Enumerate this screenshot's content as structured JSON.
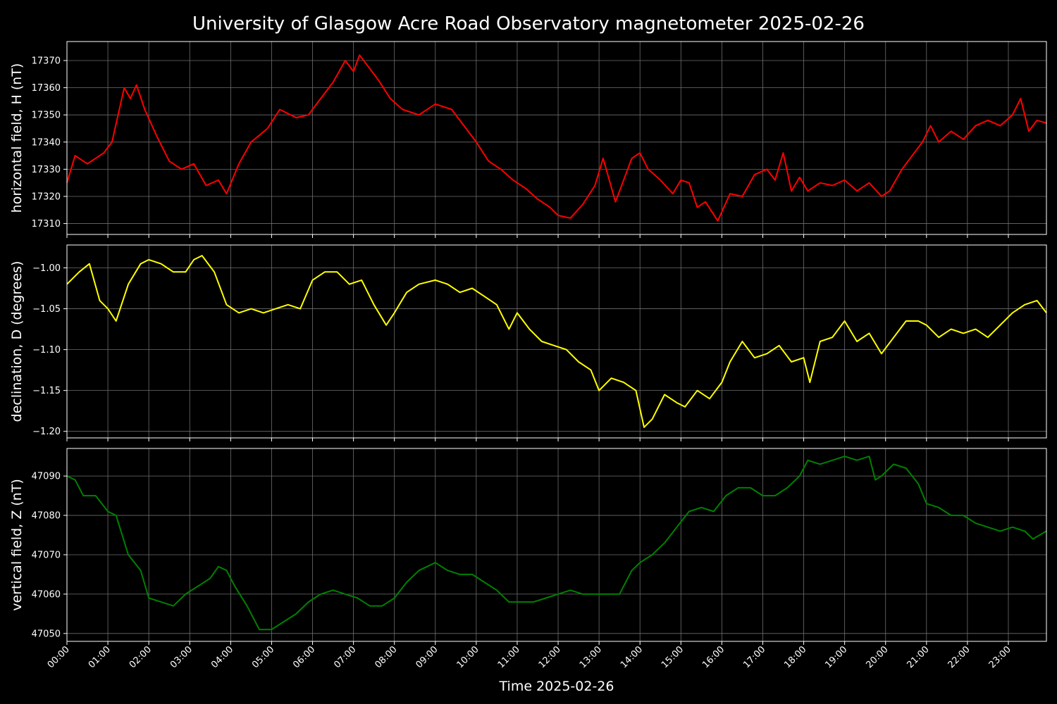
{
  "chart_data": {
    "type": "line",
    "title": "University of Glasgow Acre Road Observatory magnetometer 2025-02-26",
    "xlabel": "Time 2025-02-26",
    "x_range_hours": [
      0,
      23.93
    ],
    "x_ticks": [
      "00:00",
      "01:00",
      "02:00",
      "03:00",
      "04:00",
      "05:00",
      "06:00",
      "07:00",
      "08:00",
      "09:00",
      "10:00",
      "11:00",
      "12:00",
      "13:00",
      "14:00",
      "15:00",
      "16:00",
      "17:00",
      "18:00",
      "19:00",
      "20:00",
      "21:00",
      "22:00",
      "23:00"
    ],
    "grid": true,
    "panels": [
      {
        "name": "H",
        "ylabel": "horizontal field, H (nT)",
        "color": "#ff0000",
        "ylim": [
          17306,
          17377
        ],
        "yticks": [
          17310,
          17320,
          17330,
          17340,
          17350,
          17360,
          17370
        ],
        "ytick_labels": [
          "17310",
          "17320",
          "17330",
          "17340",
          "17350",
          "17360",
          "17370"
        ],
        "x_hours": [
          0,
          0.2,
          0.5,
          0.9,
          1.1,
          1.4,
          1.55,
          1.7,
          1.9,
          2.2,
          2.5,
          2.8,
          3.1,
          3.4,
          3.7,
          3.9,
          4.2,
          4.5,
          4.9,
          5.2,
          5.6,
          5.9,
          6.2,
          6.5,
          6.8,
          7.0,
          7.15,
          7.35,
          7.6,
          7.9,
          8.2,
          8.6,
          9.0,
          9.4,
          9.7,
          10.0,
          10.3,
          10.6,
          10.9,
          11.2,
          11.5,
          11.8,
          12.0,
          12.3,
          12.6,
          12.9,
          13.1,
          13.4,
          13.6,
          13.8,
          14.0,
          14.2,
          14.5,
          14.8,
          15.0,
          15.2,
          15.4,
          15.6,
          15.9,
          16.2,
          16.5,
          16.8,
          17.1,
          17.3,
          17.5,
          17.7,
          17.9,
          18.1,
          18.4,
          18.7,
          19.0,
          19.3,
          19.6,
          19.9,
          20.1,
          20.4,
          20.7,
          20.9,
          21.1,
          21.3,
          21.6,
          21.9,
          22.2,
          22.5,
          22.8,
          23.1,
          23.3,
          23.5,
          23.7,
          23.93
        ],
        "values": [
          17325,
          17335,
          17332,
          17336,
          17340,
          17360,
          17356,
          17361,
          17352,
          17342,
          17333,
          17330,
          17332,
          17324,
          17326,
          17321,
          17332,
          17340,
          17345,
          17352,
          17349,
          17350,
          17356,
          17362,
          17370,
          17366,
          17372,
          17368,
          17363,
          17356,
          17352,
          17350,
          17354,
          17352,
          17346,
          17340,
          17333,
          17330,
          17326,
          17323,
          17319,
          17316,
          17313,
          17312,
          17317,
          17324,
          17334,
          17318,
          17326,
          17334,
          17336,
          17330,
          17326,
          17321,
          17326,
          17325,
          17316,
          17318,
          17311,
          17321,
          17320,
          17328,
          17330,
          17326,
          17336,
          17322,
          17327,
          17322,
          17325,
          17324,
          17326,
          17322,
          17325,
          17320,
          17322,
          17330,
          17336,
          17340,
          17346,
          17340,
          17344,
          17341,
          17346,
          17348,
          17346,
          17350,
          17356,
          17344,
          17348,
          17347
        ]
      },
      {
        "name": "D",
        "ylabel": "declination, D (degrees)",
        "color": "#ffff00",
        "ylim": [
          -1.208,
          -0.972
        ],
        "yticks": [
          -1.2,
          -1.15,
          -1.1,
          -1.05,
          -1.0
        ],
        "ytick_labels": [
          "−1.20",
          "−1.15",
          "−1.10",
          "−1.05",
          "−1.00"
        ],
        "x_hours": [
          0,
          0.3,
          0.55,
          0.8,
          1.0,
          1.2,
          1.5,
          1.8,
          2.0,
          2.3,
          2.6,
          2.9,
          3.1,
          3.3,
          3.6,
          3.9,
          4.2,
          4.5,
          4.8,
          5.1,
          5.4,
          5.7,
          6.0,
          6.3,
          6.6,
          6.9,
          7.2,
          7.5,
          7.8,
          8.0,
          8.3,
          8.6,
          9.0,
          9.3,
          9.6,
          9.9,
          10.2,
          10.5,
          10.8,
          11.0,
          11.3,
          11.6,
          11.9,
          12.2,
          12.5,
          12.8,
          13.0,
          13.3,
          13.6,
          13.9,
          14.1,
          14.3,
          14.6,
          14.9,
          15.1,
          15.4,
          15.7,
          16.0,
          16.2,
          16.5,
          16.8,
          17.1,
          17.4,
          17.7,
          18.0,
          18.15,
          18.4,
          18.7,
          19.0,
          19.3,
          19.6,
          19.9,
          20.2,
          20.5,
          20.8,
          21.0,
          21.3,
          21.6,
          21.9,
          22.2,
          22.5,
          22.8,
          23.1,
          23.4,
          23.7,
          23.93
        ],
        "values": [
          -1.02,
          -1.005,
          -0.995,
          -1.04,
          -1.05,
          -1.065,
          -1.02,
          -0.995,
          -0.99,
          -0.995,
          -1.005,
          -1.005,
          -0.99,
          -0.985,
          -1.005,
          -1.045,
          -1.055,
          -1.05,
          -1.055,
          -1.05,
          -1.045,
          -1.05,
          -1.015,
          -1.005,
          -1.005,
          -1.02,
          -1.015,
          -1.045,
          -1.07,
          -1.055,
          -1.03,
          -1.02,
          -1.015,
          -1.02,
          -1.03,
          -1.025,
          -1.035,
          -1.045,
          -1.075,
          -1.055,
          -1.075,
          -1.09,
          -1.095,
          -1.1,
          -1.115,
          -1.125,
          -1.15,
          -1.135,
          -1.14,
          -1.15,
          -1.195,
          -1.185,
          -1.155,
          -1.165,
          -1.17,
          -1.15,
          -1.16,
          -1.14,
          -1.115,
          -1.09,
          -1.11,
          -1.105,
          -1.095,
          -1.115,
          -1.11,
          -1.14,
          -1.09,
          -1.085,
          -1.065,
          -1.09,
          -1.08,
          -1.105,
          -1.085,
          -1.065,
          -1.065,
          -1.07,
          -1.085,
          -1.075,
          -1.08,
          -1.075,
          -1.085,
          -1.07,
          -1.055,
          -1.045,
          -1.04,
          -1.055
        ]
      },
      {
        "name": "Z",
        "ylabel": "vertical field, Z (nT)",
        "color": "#008000",
        "ylim": [
          47048,
          47097
        ],
        "yticks": [
          47050,
          47060,
          47070,
          47080,
          47090
        ],
        "ytick_labels": [
          "47050",
          "47060",
          "47070",
          "47080",
          "47090"
        ],
        "x_hours": [
          0,
          0.2,
          0.4,
          0.7,
          1.0,
          1.2,
          1.5,
          1.8,
          2.0,
          2.3,
          2.6,
          2.9,
          3.2,
          3.5,
          3.7,
          3.9,
          4.1,
          4.4,
          4.7,
          5.0,
          5.3,
          5.6,
          5.9,
          6.2,
          6.5,
          6.8,
          7.1,
          7.4,
          7.7,
          8.0,
          8.3,
          8.6,
          9.0,
          9.3,
          9.6,
          9.9,
          10.2,
          10.5,
          10.8,
          11.1,
          11.4,
          11.7,
          12.0,
          12.3,
          12.6,
          12.9,
          13.2,
          13.5,
          13.8,
          14.0,
          14.3,
          14.6,
          14.9,
          15.2,
          15.5,
          15.8,
          16.1,
          16.4,
          16.7,
          17.0,
          17.3,
          17.6,
          17.9,
          18.1,
          18.4,
          18.7,
          19.0,
          19.3,
          19.6,
          19.75,
          19.9,
          20.2,
          20.5,
          20.8,
          21.0,
          21.3,
          21.6,
          21.9,
          22.2,
          22.5,
          22.8,
          23.1,
          23.4,
          23.6,
          23.93
        ],
        "values": [
          47090,
          47089,
          47085,
          47085,
          47081,
          47080,
          47070,
          47066,
          47059,
          47058,
          47057,
          47060,
          47062,
          47064,
          47067,
          47066,
          47062,
          47057,
          47051,
          47051,
          47053,
          47055,
          47058,
          47060,
          47061,
          47060,
          47059,
          47057,
          47057,
          47059,
          47063,
          47066,
          47068,
          47066,
          47065,
          47065,
          47063,
          47061,
          47058,
          47058,
          47058,
          47059,
          47060,
          47061,
          47060,
          47060,
          47060,
          47060,
          47066,
          47068,
          47070,
          47073,
          47077,
          47081,
          47082,
          47081,
          47085,
          47087,
          47087,
          47085,
          47085,
          47087,
          47090,
          47094,
          47093,
          47094,
          47095,
          47094,
          47095,
          47089,
          47090,
          47093,
          47092,
          47088,
          47083,
          47082,
          47080,
          47080,
          47078,
          47077,
          47076,
          47077,
          47076,
          47074,
          47076
        ]
      }
    ]
  }
}
